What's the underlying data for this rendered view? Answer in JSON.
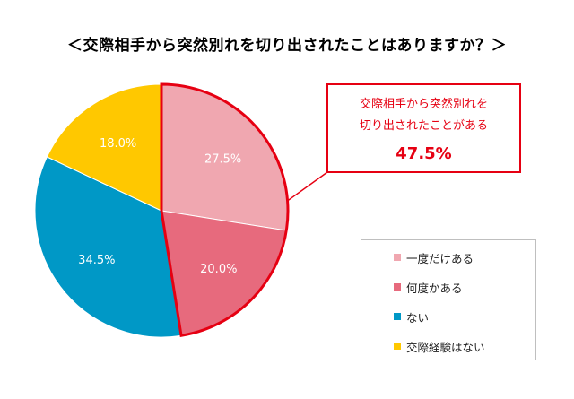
{
  "title": "＜交際相手から突然別れを切り出されたことはありますか？＞",
  "callout": {
    "line1": "交際相手から突然別れを",
    "line2": "切り出されたことがある",
    "value": "47.5%"
  },
  "colors": {
    "highlight": "#e60012",
    "slice_colors": [
      "#f0a7b0",
      "#e76a7d",
      "#0098c6",
      "#ffc800"
    ]
  },
  "chart_data": {
    "type": "pie",
    "title": "＜交際相手から突然別れを切り出されたことはありますか？＞",
    "labels": [
      "一度だけある",
      "何度かある",
      "ない",
      "交際経験はない"
    ],
    "values": [
      27.5,
      20.0,
      34.5,
      18.0
    ],
    "data_labels": [
      "27.5%",
      "20.0%",
      "34.5%",
      "18.0%"
    ],
    "highlighted_slices": [
      "一度だけある",
      "何度かある"
    ],
    "highlighted_total": 47.5,
    "start_angle": "12 o'clock",
    "direction": "clockwise",
    "legend_position": "right"
  }
}
